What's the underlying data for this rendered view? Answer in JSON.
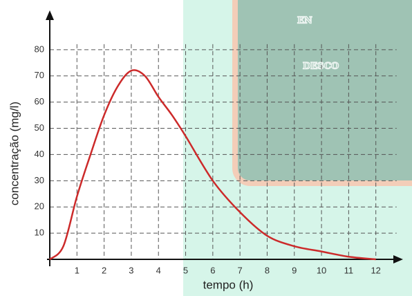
{
  "chart_data": {
    "type": "line",
    "xlabel": "tempo (h)",
    "ylabel": "concentração (mg/l)",
    "x": [
      0,
      0.5,
      1,
      1.5,
      2,
      2.5,
      3,
      3.5,
      4,
      4.5,
      5,
      6,
      7,
      8,
      9,
      10,
      11,
      12
    ],
    "series": [
      {
        "color": "#cc2a2a",
        "values": [
          0,
          5,
          24,
          40,
          55,
          66,
          72,
          70,
          62,
          55,
          47,
          30,
          18,
          9,
          5,
          3,
          1,
          0
        ]
      }
    ],
    "xlim": [
      0,
      13
    ],
    "ylim": [
      0,
      95
    ],
    "xticks": [
      1,
      2,
      3,
      4,
      5,
      6,
      7,
      8,
      9,
      10,
      11,
      12
    ],
    "yticks": [
      10,
      20,
      30,
      40,
      50,
      60,
      70,
      80
    ],
    "grid": true,
    "background_text": [
      "EN",
      "DESCO"
    ]
  }
}
